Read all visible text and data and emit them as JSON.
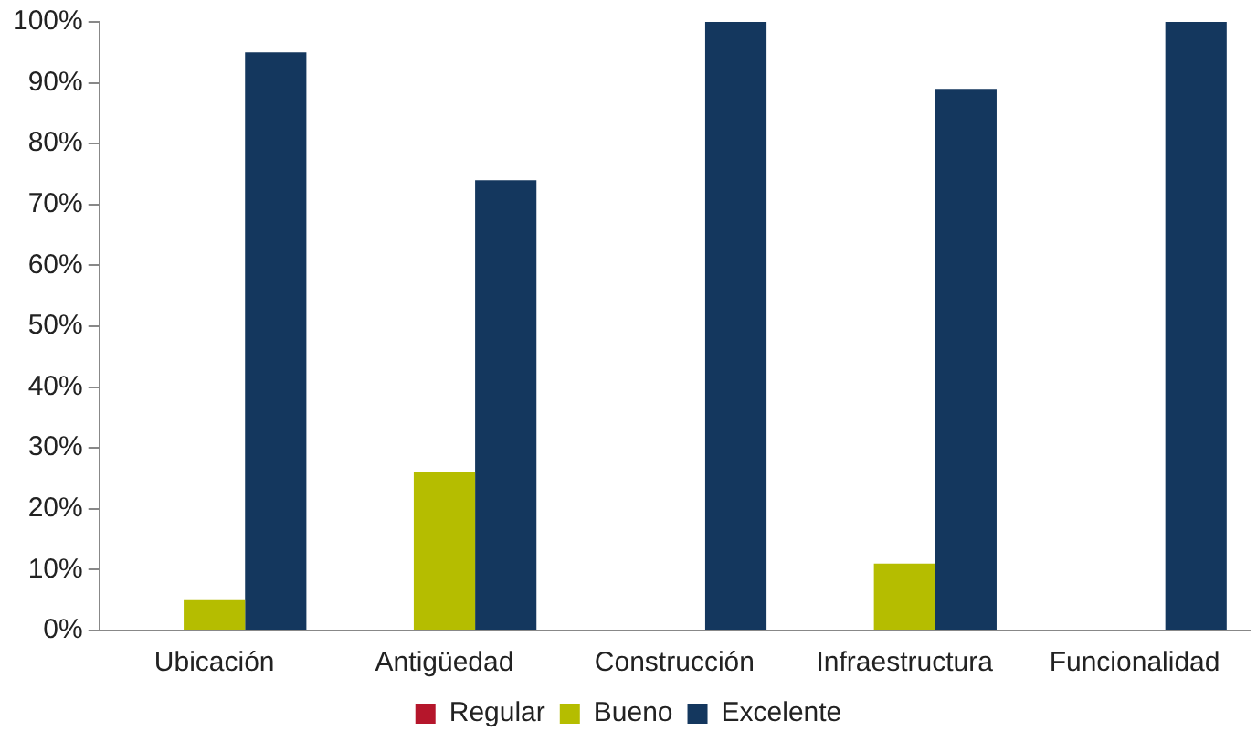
{
  "chart_data": {
    "type": "bar",
    "categories": [
      "Ubicación",
      "Antigüedad",
      "Construcción",
      "Infraestructura",
      "Funcionalidad"
    ],
    "series": [
      {
        "name": "Regular",
        "color": "#b5162b",
        "values": [
          0,
          0,
          0,
          0,
          0
        ]
      },
      {
        "name": "Bueno",
        "color": "#b5bd00",
        "values": [
          5,
          26,
          0,
          11,
          0
        ]
      },
      {
        "name": "Excelente",
        "color": "#14375e",
        "values": [
          95,
          74,
          100,
          89,
          100
        ]
      }
    ],
    "ylim": [
      0,
      100
    ],
    "yticks": [
      {
        "value": 0,
        "label": "0%"
      },
      {
        "value": 10,
        "label": "10%"
      },
      {
        "value": 20,
        "label": "20%"
      },
      {
        "value": 30,
        "label": "30%"
      },
      {
        "value": 40,
        "label": "40%"
      },
      {
        "value": 50,
        "label": "50%"
      },
      {
        "value": 60,
        "label": "60%"
      },
      {
        "value": 70,
        "label": "70%"
      },
      {
        "value": 80,
        "label": "80%"
      },
      {
        "value": 90,
        "label": "90%"
      },
      {
        "value": 100,
        "label": "100%"
      }
    ],
    "grid": false,
    "legend": "bottom"
  }
}
